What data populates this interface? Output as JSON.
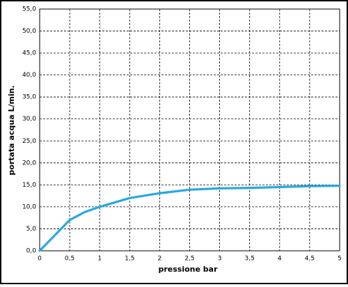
{
  "chart_data": {
    "type": "line",
    "x_label": "pressione  bar",
    "y_label": "portata acqua  L/min.",
    "x": [
      0,
      0.5,
      0.75,
      1,
      1.5,
      2,
      2.5,
      3,
      3.5,
      4,
      4.5,
      5
    ],
    "series": [
      {
        "color": "#29a8e0",
        "values": [
          0,
          7,
          8.8,
          10,
          12,
          13.1,
          13.9,
          14.2,
          14.3,
          14.5,
          14.7,
          14.8
        ]
      }
    ],
    "xlim": [
      0,
      5
    ],
    "xticks": [
      0,
      {
        "value": 0.5,
        "label": "0,5"
      },
      1,
      {
        "value": 1.5,
        "label": "1,5"
      },
      2,
      {
        "value": 2.5,
        "label": "2,5"
      },
      3,
      {
        "value": 3.5,
        "label": "3,5"
      },
      4,
      {
        "value": 4.5,
        "label": "4,5"
      },
      5
    ],
    "ylim": [
      0,
      55
    ],
    "yticks": [
      {
        "value": 0,
        "label": "0,0"
      },
      {
        "value": 5,
        "label": "5,0"
      },
      {
        "value": 10,
        "label": "10,0"
      },
      {
        "value": 15,
        "label": "15,0"
      },
      {
        "value": 20,
        "label": "20,0"
      },
      {
        "value": 25,
        "label": "25,0"
      },
      {
        "value": 30,
        "label": "30,0"
      },
      {
        "value": 35,
        "label": "35,0"
      },
      {
        "value": 40,
        "label": "40,0"
      },
      {
        "value": 45,
        "label": "45,0"
      },
      {
        "value": 50,
        "label": "50,0"
      },
      {
        "value": 55,
        "label": "55,0"
      }
    ],
    "grid": true
  }
}
